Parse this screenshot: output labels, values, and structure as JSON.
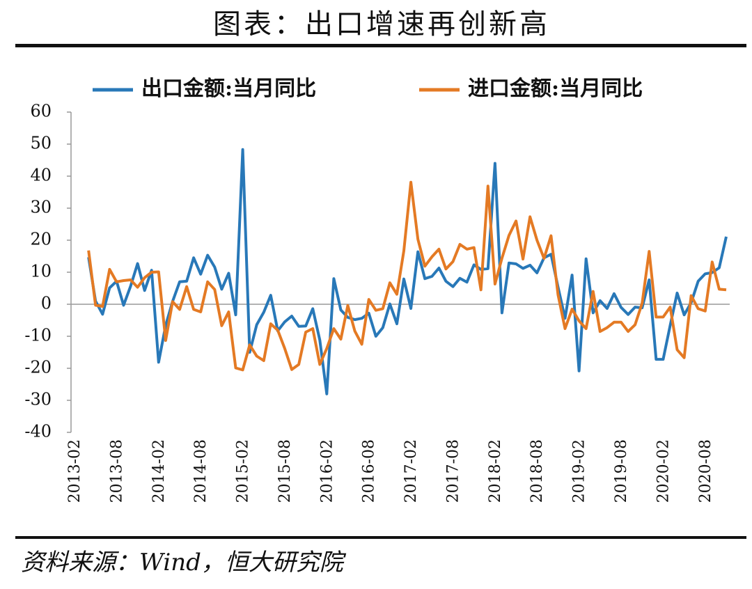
{
  "chart_data": {
    "type": "line",
    "title": "图表：出口增速再创新高",
    "source": "资料来源：Wind，恒大研究院",
    "categories": [
      "2013-02",
      null,
      null,
      null,
      null,
      null,
      "2013-08",
      null,
      null,
      null,
      null,
      null,
      "2014-02",
      null,
      null,
      null,
      null,
      null,
      "2014-08",
      null,
      null,
      null,
      null,
      null,
      "2015-02",
      null,
      null,
      null,
      null,
      null,
      "2015-08",
      null,
      null,
      null,
      null,
      null,
      "2016-02",
      null,
      null,
      null,
      null,
      null,
      "2016-08",
      null,
      null,
      null,
      null,
      null,
      "2017-02",
      null,
      null,
      null,
      null,
      null,
      "2017-08",
      null,
      null,
      null,
      null,
      null,
      "2018-02",
      null,
      null,
      null,
      null,
      null,
      "2018-08",
      null,
      null,
      null,
      null,
      null,
      "2019-02",
      null,
      null,
      null,
      null,
      null,
      "2019-08",
      null,
      null,
      null,
      null,
      null,
      "2020-02",
      null,
      null,
      null,
      null,
      null,
      "2020-08",
      null,
      null,
      null
    ],
    "series": [
      {
        "name": "出口金额:当月同比",
        "color": "#2878b8",
        "values": [
          null,
          null,
          14.7,
          1.0,
          -3.1,
          5.1,
          7.2,
          -0.3,
          5.6,
          12.7,
          4.3,
          10.6,
          -18.1,
          -6.6,
          0.9,
          7.0,
          7.2,
          14.5,
          9.4,
          15.3,
          11.6,
          4.7,
          9.7,
          -3.3,
          48.3,
          -15.0,
          -6.4,
          -2.5,
          2.8,
          -8.3,
          -5.5,
          -3.7,
          -6.9,
          -6.8,
          -1.4,
          -11.2,
          -28.0,
          8.0,
          -1.8,
          -4.1,
          -4.8,
          -4.4,
          -2.8,
          -10.0,
          -7.3,
          0.1,
          -6.1,
          7.9,
          -1.3,
          16.4,
          8.0,
          8.7,
          11.3,
          7.2,
          5.5,
          8.1,
          6.9,
          12.3,
          10.9,
          11.1,
          44.0,
          -2.7,
          12.9,
          12.6,
          11.2,
          12.2,
          9.8,
          14.5,
          15.6,
          5.4,
          -4.4,
          9.1,
          -20.8,
          14.2,
          -2.7,
          1.1,
          -1.3,
          3.3,
          -1.0,
          -3.2,
          -0.9,
          -1.1,
          7.6,
          -17.2,
          -17.2,
          -6.6,
          3.5,
          -3.3,
          0.5,
          7.2,
          9.5,
          9.9,
          11.4,
          21.1
        ]
      },
      {
        "name": "进口金额:当月同比",
        "color": "#e47a24",
        "values": [
          null,
          null,
          16.8,
          -0.3,
          -0.7,
          10.9,
          7.0,
          7.4,
          7.6,
          5.3,
          8.3,
          10.0,
          10.1,
          -11.3,
          0.8,
          -1.6,
          5.5,
          -1.6,
          -2.4,
          7.0,
          4.6,
          -6.7,
          -2.4,
          -19.9,
          -20.5,
          -12.7,
          -16.2,
          -17.6,
          -6.1,
          -8.1,
          -13.8,
          -20.4,
          -18.8,
          -8.7,
          -7.6,
          -18.8,
          -13.8,
          -7.6,
          -10.9,
          -0.4,
          -8.4,
          -12.5,
          1.5,
          -1.9,
          -1.4,
          6.7,
          3.1,
          16.7,
          38.1,
          20.3,
          11.9,
          14.8,
          17.2,
          11.0,
          13.3,
          18.7,
          17.2,
          17.7,
          4.5,
          36.9,
          6.3,
          14.4,
          21.5,
          26.0,
          14.1,
          27.3,
          20.0,
          14.3,
          21.4,
          3.0,
          -7.6,
          -1.5,
          -5.2,
          -7.6,
          4.0,
          -8.5,
          -7.3,
          -5.6,
          -5.6,
          -8.5,
          -6.4,
          0.3,
          16.5,
          -4.0,
          -4.0,
          -0.9,
          -14.2,
          -16.7,
          2.7,
          -1.4,
          -2.1,
          13.2,
          4.7,
          4.5
        ]
      }
    ],
    "ylim": [
      -40,
      60
    ],
    "yticks": [
      -40,
      -30,
      -20,
      -10,
      0,
      10,
      20,
      30,
      40,
      50,
      60
    ],
    "legend": "top",
    "grid": false
  }
}
